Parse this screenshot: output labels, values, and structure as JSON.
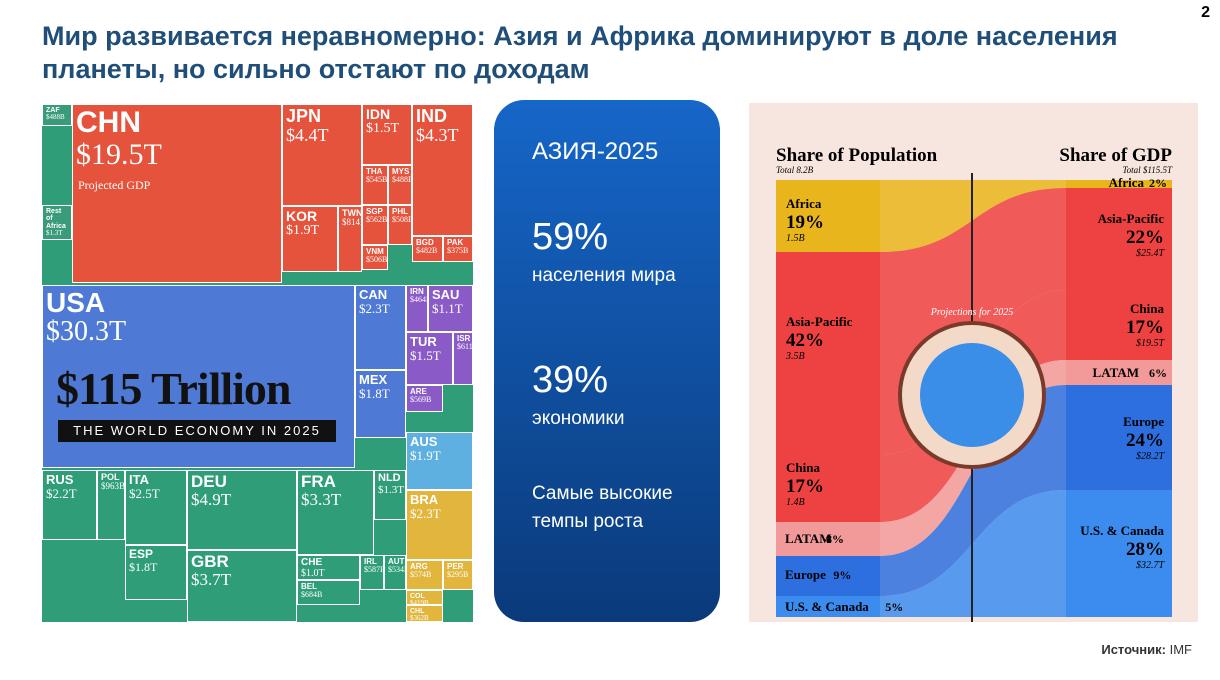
{
  "page_number": "2",
  "title": "Мир развивается неравномерно: Азия и Африка доминируют в доле населения планеты, но сильно отстают по доходам",
  "treemap": {
    "headline": "$115 Trillion",
    "subheadline": "THE WORLD ECONOMY IN 2025",
    "annotation": "Projected GDP",
    "tiles": [
      {
        "code": "CHN",
        "value": "$19.5T"
      },
      {
        "code": "JPN",
        "value": "$4.4T"
      },
      {
        "code": "KOR",
        "value": "$1.9T"
      },
      {
        "code": "TWN",
        "value": "$814B"
      },
      {
        "code": "IDN",
        "value": "$1.5T"
      },
      {
        "code": "IND",
        "value": "$4.3T"
      },
      {
        "code": "THA",
        "value": "$545B"
      },
      {
        "code": "MYS",
        "value": "$488B"
      },
      {
        "code": "SGP",
        "value": "$562B"
      },
      {
        "code": "PHL",
        "value": "$508B"
      },
      {
        "code": "VNM",
        "value": "$506B"
      },
      {
        "code": "BGD",
        "value": "$482B"
      },
      {
        "code": "PAK",
        "value": "$375B"
      },
      {
        "code": "USA",
        "value": "$30.3T"
      },
      {
        "code": "CAN",
        "value": "$2.3T"
      },
      {
        "code": "MEX",
        "value": "$1.8T"
      },
      {
        "code": "IRN",
        "value": "$464B"
      },
      {
        "code": "SAU",
        "value": "$1.1T"
      },
      {
        "code": "TUR",
        "value": "$1.5T"
      },
      {
        "code": "ISR",
        "value": "$611B"
      },
      {
        "code": "ARE",
        "value": "$569B"
      },
      {
        "code": "AUS",
        "value": "$1.9T"
      },
      {
        "code": "RUS",
        "value": "$2.2T"
      },
      {
        "code": "POL",
        "value": "$963B"
      },
      {
        "code": "ITA",
        "value": "$2.5T"
      },
      {
        "code": "DEU",
        "value": "$4.9T"
      },
      {
        "code": "FRA",
        "value": "$3.3T"
      },
      {
        "code": "NLD",
        "value": "$1.3T"
      },
      {
        "code": "ESP",
        "value": "$1.8T"
      },
      {
        "code": "GBR",
        "value": "$3.7T"
      },
      {
        "code": "CHE",
        "value": "$1.0T"
      },
      {
        "code": "IRL",
        "value": "$587B"
      },
      {
        "code": "AUT",
        "value": "$534B"
      },
      {
        "code": "BEL",
        "value": "$684B"
      },
      {
        "code": "BRA",
        "value": "$2.3T"
      },
      {
        "code": "ARG",
        "value": "$574B"
      },
      {
        "code": "PER",
        "value": "$295B"
      },
      {
        "code": "COL",
        "value": "$419B"
      },
      {
        "code": "CHL",
        "value": "$362B"
      },
      {
        "code": "ZAF",
        "value": "$488B"
      },
      {
        "code": "Rest of Africa",
        "value": "$1.3T"
      }
    ]
  },
  "card": {
    "title": "АЗИЯ-2025",
    "items": [
      {
        "value": "59%",
        "text": "населения мира"
      },
      {
        "value": "39%",
        "text": "экономики"
      },
      {
        "value": "",
        "text": "Самые высокие темпы роста"
      }
    ]
  },
  "shares": {
    "left_title": "Share of Population",
    "left_total": "Total 8.2B",
    "right_title": "Share of GDP",
    "right_total": "Total $115.5T",
    "center_label": "Projections for 2025",
    "left": [
      {
        "name": "Africa",
        "share": "19%",
        "amount": "1.5B"
      },
      {
        "name": "Asia-Pacific",
        "share": "42%",
        "amount": "3.5B"
      },
      {
        "name": "China",
        "share": "17%",
        "amount": "1.4B"
      },
      {
        "name": "LATAM",
        "share": "8%"
      },
      {
        "name": "Europe",
        "share": "9%"
      },
      {
        "name": "U.S. & Canada",
        "share": "5%"
      }
    ],
    "right": [
      {
        "name": "Africa",
        "share": "2%"
      },
      {
        "name": "Asia-Pacific",
        "share": "22%",
        "amount": "$25.4T"
      },
      {
        "name": "China",
        "share": "17%",
        "amount": "$19.5T"
      },
      {
        "name": "LATAM",
        "share": "6%"
      },
      {
        "name": "Europe",
        "share": "24%",
        "amount": "$28.2T"
      },
      {
        "name": "U.S. & Canada",
        "share": "28%",
        "amount": "$32.7T"
      }
    ]
  },
  "source": {
    "label": "Источник:",
    "value": "IMF"
  }
}
